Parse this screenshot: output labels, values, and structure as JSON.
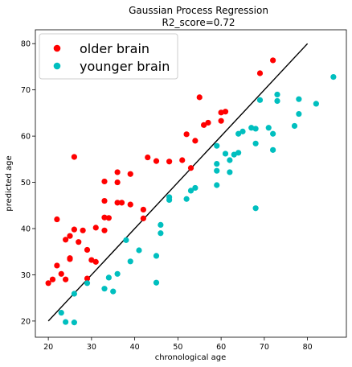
{
  "chart_data": {
    "type": "scatter",
    "title": "Gaussian Process Regression",
    "subtitle": "R2_score=0.72",
    "xlabel": "chronological age",
    "ylabel": "predicted age",
    "xlim": [
      17.0,
      89.0
    ],
    "ylim": [
      16.5,
      83.0
    ],
    "xticks": [
      20,
      30,
      40,
      50,
      60,
      70,
      80
    ],
    "yticks": [
      20,
      30,
      40,
      50,
      60,
      70,
      80
    ],
    "grid": false,
    "legend": {
      "placement": "top-left"
    },
    "reference_line": {
      "x": [
        20,
        80
      ],
      "y": [
        20,
        80
      ],
      "color": "#000000"
    },
    "series": [
      {
        "name": "older brain",
        "color": "#ff0000",
        "points": [
          [
            20,
            28.2
          ],
          [
            21,
            29
          ],
          [
            22,
            42
          ],
          [
            22,
            32
          ],
          [
            23,
            30.2
          ],
          [
            24,
            29
          ],
          [
            24,
            37.6
          ],
          [
            25,
            33.4
          ],
          [
            25,
            33.6
          ],
          [
            25,
            38.4
          ],
          [
            26,
            55.5
          ],
          [
            26,
            39.8
          ],
          [
            27,
            37.1
          ],
          [
            28,
            39.6
          ],
          [
            29,
            35.4
          ],
          [
            29,
            29.2
          ],
          [
            30,
            33.2
          ],
          [
            31,
            32.8
          ],
          [
            31,
            40.2
          ],
          [
            33,
            50.2
          ],
          [
            33,
            46
          ],
          [
            33,
            42.4
          ],
          [
            33,
            39.6
          ],
          [
            34,
            42.3
          ],
          [
            36,
            52.2
          ],
          [
            36,
            50
          ],
          [
            36,
            45.6
          ],
          [
            37,
            45.6
          ],
          [
            39,
            51.8
          ],
          [
            39,
            45.2
          ],
          [
            42,
            44.1
          ],
          [
            42,
            42.2
          ],
          [
            43,
            55.4
          ],
          [
            45,
            54.6
          ],
          [
            48,
            54.5
          ],
          [
            51,
            54.8
          ],
          [
            52,
            60.4
          ],
          [
            53,
            53.1
          ],
          [
            54,
            59
          ],
          [
            55,
            68.4
          ],
          [
            56,
            62.4
          ],
          [
            57,
            62.9
          ],
          [
            60,
            65.1
          ],
          [
            60,
            63.3
          ],
          [
            61,
            65.3
          ],
          [
            69,
            73.6
          ],
          [
            72,
            76.4
          ]
        ]
      },
      {
        "name": "younger brain",
        "color": "#00bfbf",
        "points": [
          [
            23,
            21.8
          ],
          [
            24,
            19.8
          ],
          [
            26,
            19.7
          ],
          [
            26,
            25.9
          ],
          [
            29,
            28.2
          ],
          [
            33,
            27
          ],
          [
            34,
            29.4
          ],
          [
            35,
            26.4
          ],
          [
            36,
            30.2
          ],
          [
            38,
            37.5
          ],
          [
            39,
            32.9
          ],
          [
            41,
            35.3
          ],
          [
            45,
            34.1
          ],
          [
            45,
            28.3
          ],
          [
            46,
            40.8
          ],
          [
            46,
            39
          ],
          [
            48,
            46.8
          ],
          [
            48,
            46.2
          ],
          [
            52,
            46.4
          ],
          [
            53,
            48.2
          ],
          [
            54,
            48.8
          ],
          [
            59,
            57.9
          ],
          [
            59,
            54
          ],
          [
            59,
            52.5
          ],
          [
            59,
            49.4
          ],
          [
            61,
            56.2
          ],
          [
            62,
            54.8
          ],
          [
            62,
            52.2
          ],
          [
            63,
            56
          ],
          [
            64,
            60.5
          ],
          [
            64,
            56.4
          ],
          [
            65,
            61
          ],
          [
            67,
            61.8
          ],
          [
            68,
            61.6
          ],
          [
            68,
            58.4
          ],
          [
            68,
            44.4
          ],
          [
            69,
            67.8
          ],
          [
            71,
            61.8
          ],
          [
            72,
            60.5
          ],
          [
            72,
            57
          ],
          [
            73,
            69
          ],
          [
            73,
            67.6
          ],
          [
            77,
            62.2
          ],
          [
            78,
            68
          ],
          [
            78,
            64.8
          ],
          [
            82,
            67
          ],
          [
            86,
            72.8
          ]
        ]
      }
    ]
  }
}
